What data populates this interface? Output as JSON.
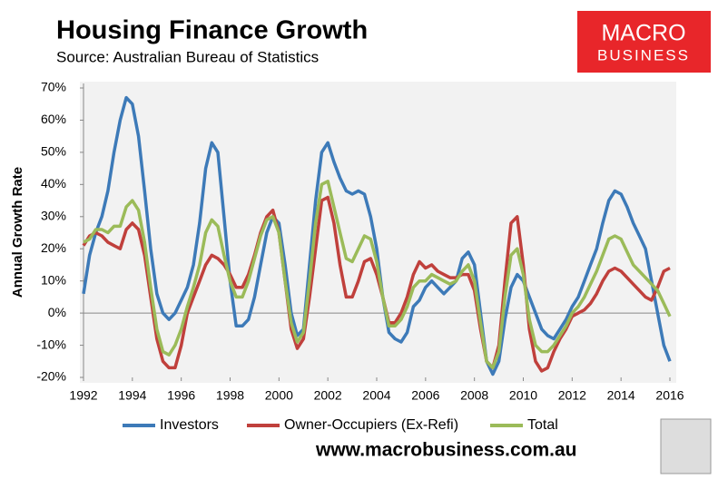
{
  "chart_data": {
    "type": "line",
    "title": "Housing Finance Growth",
    "subtitle": "Source: Australian Bureau of Statistics",
    "y_label": "Annual Growth Rate",
    "logo": [
      "MACRO",
      "BUSINESS"
    ],
    "footer": "www.macrobusiness.com.au",
    "xlim": [
      1992,
      2016
    ],
    "xticks": [
      1992,
      1994,
      1996,
      1998,
      2000,
      2002,
      2004,
      2006,
      2008,
      2010,
      2012,
      2014,
      2016
    ],
    "ylim": [
      -20,
      70
    ],
    "yticks": [
      {
        "value": -20,
        "label": "-20%"
      },
      {
        "value": -10,
        "label": "-10%"
      },
      {
        "value": 0,
        "label": "0%"
      },
      {
        "value": 10,
        "label": "10%"
      },
      {
        "value": 20,
        "label": "20%"
      },
      {
        "value": 30,
        "label": "30%"
      },
      {
        "value": 40,
        "label": "40%"
      },
      {
        "value": 50,
        "label": "50%"
      },
      {
        "value": 60,
        "label": "60%"
      },
      {
        "value": 70,
        "label": "70%"
      }
    ],
    "grid": false,
    "legend": "bottom",
    "x": [
      1992.0,
      1992.25,
      1992.5,
      1992.75,
      1993.0,
      1993.25,
      1993.5,
      1993.75,
      1994.0,
      1994.25,
      1994.5,
      1994.75,
      1995.0,
      1995.25,
      1995.5,
      1995.75,
      1996.0,
      1996.25,
      1996.5,
      1996.75,
      1997.0,
      1997.25,
      1997.5,
      1997.75,
      1998.0,
      1998.25,
      1998.5,
      1998.75,
      1999.0,
      1999.25,
      1999.5,
      1999.75,
      2000.0,
      2000.25,
      2000.5,
      2000.75,
      2001.0,
      2001.25,
      2001.5,
      2001.75,
      2002.0,
      2002.25,
      2002.5,
      2002.75,
      2003.0,
      2003.25,
      2003.5,
      2003.75,
      2004.0,
      2004.25,
      2004.5,
      2004.75,
      2005.0,
      2005.25,
      2005.5,
      2005.75,
      2006.0,
      2006.25,
      2006.5,
      2006.75,
      2007.0,
      2007.25,
      2007.5,
      2007.75,
      2008.0,
      2008.25,
      2008.5,
      2008.75,
      2009.0,
      2009.25,
      2009.5,
      2009.75,
      2010.0,
      2010.25,
      2010.5,
      2010.75,
      2011.0,
      2011.25,
      2011.5,
      2011.75,
      2012.0,
      2012.25,
      2012.5,
      2012.75,
      2013.0,
      2013.25,
      2013.5,
      2013.75,
      2014.0,
      2014.25,
      2014.5,
      2014.75,
      2015.0,
      2015.25,
      2015.5,
      2015.75,
      2016.0
    ],
    "series": [
      {
        "name": "Investors",
        "color": "#3d7ab8",
        "values": [
          6,
          18,
          25,
          30,
          38,
          50,
          60,
          67,
          65,
          55,
          38,
          20,
          6,
          0,
          -2,
          0,
          4,
          8,
          15,
          28,
          45,
          53,
          50,
          30,
          10,
          -4,
          -4,
          -2,
          5,
          15,
          25,
          30,
          28,
          15,
          0,
          -7,
          -5,
          15,
          35,
          50,
          53,
          47,
          42,
          38,
          37,
          38,
          37,
          30,
          20,
          5,
          -6,
          -8,
          -9,
          -6,
          2,
          4,
          8,
          10,
          8,
          6,
          8,
          10,
          17,
          19,
          15,
          0,
          -15,
          -19,
          -15,
          -2,
          8,
          12,
          10,
          5,
          0,
          -5,
          -7,
          -8,
          -5,
          -2,
          2,
          5,
          10,
          15,
          20,
          28,
          35,
          38,
          37,
          33,
          28,
          24,
          20,
          10,
          0,
          -10,
          -15
        ]
      },
      {
        "name": "Owner-Occupiers (Ex-Refi)",
        "color": "#c0403c",
        "values": [
          21,
          24,
          25,
          24,
          22,
          21,
          20,
          26,
          28,
          26,
          18,
          5,
          -8,
          -15,
          -17,
          -17,
          -10,
          0,
          5,
          10,
          15,
          18,
          17,
          15,
          12,
          8,
          8,
          12,
          18,
          25,
          30,
          32,
          25,
          10,
          -5,
          -11,
          -8,
          5,
          20,
          35,
          36,
          28,
          15,
          5,
          5,
          10,
          16,
          17,
          12,
          5,
          -3,
          -3,
          0,
          5,
          12,
          16,
          14,
          15,
          13,
          12,
          11,
          11,
          12,
          12,
          7,
          -5,
          -15,
          -17,
          -10,
          10,
          28,
          30,
          15,
          -5,
          -15,
          -18,
          -17,
          -12,
          -8,
          -5,
          -1,
          0,
          1,
          3,
          6,
          10,
          13,
          14,
          13,
          11,
          9,
          7,
          5,
          4,
          8,
          13,
          14
        ]
      },
      {
        "name": "Total",
        "color": "#9bbb59",
        "values": [
          22,
          23,
          26,
          26,
          25,
          27,
          27,
          33,
          35,
          32,
          22,
          8,
          -5,
          -12,
          -13,
          -10,
          -5,
          2,
          8,
          15,
          25,
          29,
          27,
          18,
          10,
          5,
          5,
          10,
          17,
          24,
          29,
          30,
          25,
          10,
          -3,
          -9,
          -6,
          10,
          28,
          40,
          41,
          33,
          25,
          17,
          16,
          20,
          24,
          23,
          16,
          5,
          -4,
          -4,
          -2,
          2,
          8,
          10,
          10,
          12,
          11,
          10,
          9,
          10,
          13,
          15,
          10,
          -3,
          -15,
          -17,
          -12,
          5,
          18,
          20,
          12,
          -2,
          -10,
          -12,
          -12,
          -10,
          -7,
          -4,
          0,
          2,
          5,
          9,
          13,
          18,
          23,
          24,
          23,
          19,
          15,
          13,
          11,
          9,
          7,
          3,
          -1
        ]
      }
    ]
  }
}
